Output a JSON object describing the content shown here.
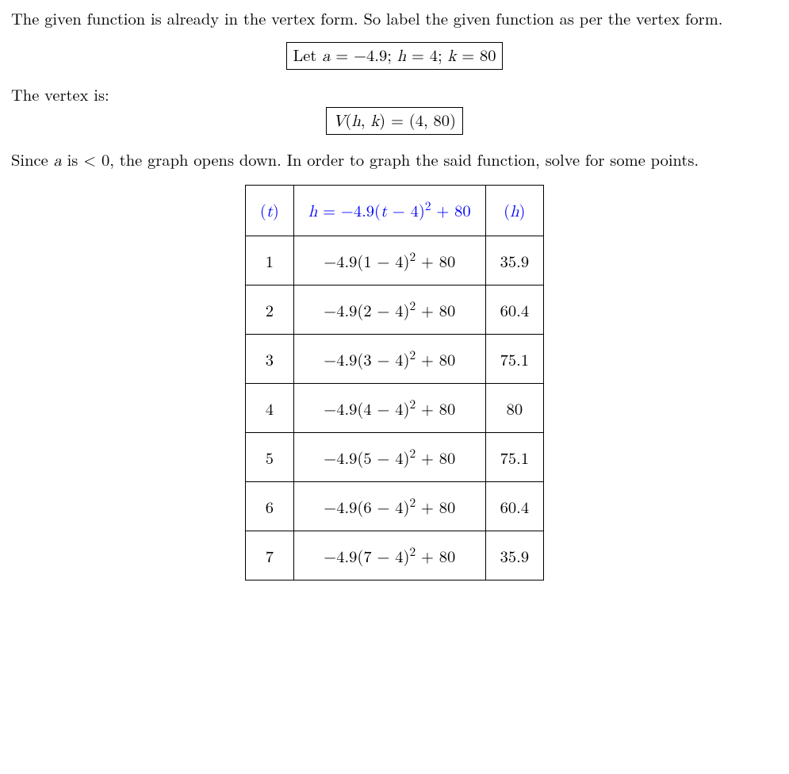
{
  "para1": "The given function is already in the vertex form. So label the given function as per the vertex form.",
  "box1_pre": "Let ",
  "box1_a": "a",
  "box1_eq1": " = −4.9; ",
  "box1_h": "h",
  "box1_eq2": " = 4; ",
  "box1_k": "k",
  "box1_eq3": " = 80",
  "para2": "The vertex is:",
  "box2_V": "V",
  "box2_args": "(h, k)",
  "box2_rhs": " = (4, 80)",
  "para3_a": "Since ",
  "para3_a_var": "a",
  "para3_b": " is < 0, the graph opens down. In order to graph the said function, solve for some points.",
  "table": {
    "header": {
      "c1_open": "(",
      "c1_var": "t",
      "c1_close": ")",
      "c2_var": "h",
      "c2_eq": " = −4.9(",
      "c2_t": "t",
      "c2_mid": " − 4)",
      "c2_exp": "2",
      "c2_end": " + 80",
      "c3_open": "(",
      "c3_var": "h",
      "c3_close": ")"
    },
    "rows": [
      {
        "t": "1",
        "expr_num": "1",
        "h": "35.9"
      },
      {
        "t": "2",
        "expr_num": "2",
        "h": "60.4"
      },
      {
        "t": "3",
        "expr_num": "3",
        "h": "75.1"
      },
      {
        "t": "4",
        "expr_num": "4",
        "h": "80"
      },
      {
        "t": "5",
        "expr_num": "5",
        "h": "75.1"
      },
      {
        "t": "6",
        "expr_num": "6",
        "h": "60.4"
      },
      {
        "t": "7",
        "expr_num": "7",
        "h": "35.9"
      }
    ],
    "expr_prefix": "−4.9(",
    "expr_mid": " − 4)",
    "expr_exp": "2",
    "expr_suffix": " + 80"
  }
}
